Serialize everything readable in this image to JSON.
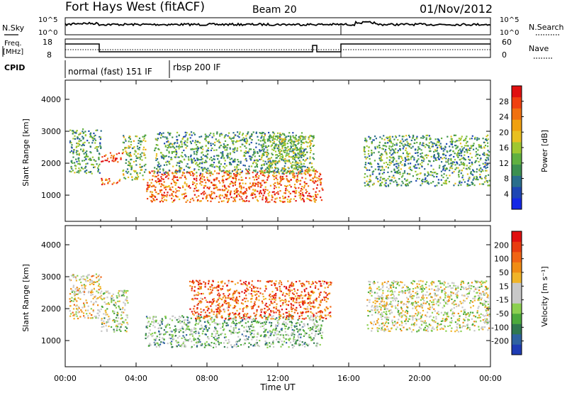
{
  "header": {
    "site": "Fort Hays West (fitACF)",
    "beam": "Beam 20",
    "date": "01/Nov/2012"
  },
  "top_panels": {
    "nsky_label": "N.Sky",
    "nsearch_label": "N.Search",
    "noise_ticks": [
      "10^5",
      "10^0"
    ],
    "freq_label_1": "Freq.",
    "freq_label_2": "[MHz]",
    "freq_ticks": [
      "18",
      "8"
    ],
    "nave_label": "Nave",
    "nave_ticks": [
      "60",
      "0"
    ],
    "cpid_label": "CPID",
    "cpid_modes": [
      {
        "label": "normal (fast) 151 IF",
        "start_hour": 0,
        "end_hour": 6
      },
      {
        "label": "rbsp 200 IF",
        "start_hour": 6,
        "end_hour": 24
      }
    ]
  },
  "xaxis": {
    "label": "Time UT",
    "ticks": [
      "00:00",
      "04:00",
      "08:00",
      "12:00",
      "16:00",
      "20:00",
      "00:00"
    ]
  },
  "chart_data": [
    {
      "type": "heatmap",
      "title": "",
      "xlabel": "Time UT",
      "ylabel": "Slant Range [km]",
      "xlim_hours": [
        0,
        24
      ],
      "ylim_km": [
        180,
        4600
      ],
      "yticks": [
        "1000",
        "2000",
        "3000",
        "4000"
      ],
      "colorbar": {
        "label": "Power [dB]",
        "ticks": [
          "4",
          "8",
          "12",
          "16",
          "20",
          "24",
          "28"
        ],
        "colors": [
          "#1428e6",
          "#1e46b4",
          "#2a6e8c",
          "#3c9050",
          "#60b040",
          "#a0c830",
          "#e8c020",
          "#f0a010",
          "#f07010",
          "#f04010",
          "#e01010"
        ]
      },
      "scatter_regions": [
        {
          "t0": 0.2,
          "t1": 2.0,
          "r0": 1700,
          "r1": 3100,
          "level": 0.35
        },
        {
          "t0": 2.0,
          "t1": 3.2,
          "r0": 2050,
          "r1": 2350,
          "level": 0.92
        },
        {
          "t0": 2.0,
          "t1": 3.2,
          "r0": 1350,
          "r1": 1550,
          "level": 0.75
        },
        {
          "t0": 3.2,
          "t1": 4.5,
          "r0": 1500,
          "r1": 2900,
          "level": 0.45
        },
        {
          "t0": 4.5,
          "t1": 14.5,
          "r0": 800,
          "r1": 1800,
          "level": 0.82
        },
        {
          "t0": 5.0,
          "t1": 13.5,
          "r0": 1700,
          "r1": 3000,
          "level": 0.35
        },
        {
          "t0": 11.0,
          "t1": 14.0,
          "r0": 1700,
          "r1": 2900,
          "level": 0.45
        },
        {
          "t0": 16.8,
          "t1": 23.9,
          "r0": 1300,
          "r1": 2900,
          "level": 0.35
        }
      ]
    },
    {
      "type": "heatmap",
      "title": "",
      "xlabel": "Time UT",
      "ylabel": "Slant Range [km]",
      "xlim_hours": [
        0,
        24
      ],
      "ylim_km": [
        180,
        4600
      ],
      "yticks": [
        "1000",
        "2000",
        "3000",
        "4000"
      ],
      "colorbar": {
        "label": "Velocity [m s⁻¹]",
        "ticks": [
          "200",
          "100",
          "50",
          "15",
          "-15",
          "-50",
          "-100",
          "-200"
        ],
        "colors": [
          "#1e3cb4",
          "#2f62a0",
          "#307850",
          "#4caa3c",
          "#8cd050",
          "#c8c8c8",
          "#c8c8c8",
          "#f0b428",
          "#f08c14",
          "#f06414",
          "#e83c10",
          "#e01010"
        ]
      },
      "scatter_regions": [
        {
          "t0": 0.2,
          "t1": 2.0,
          "r0": 1700,
          "r1": 3100,
          "level": 0.55
        },
        {
          "t0": 2.0,
          "t1": 3.5,
          "r0": 1300,
          "r1": 2600,
          "level": 0.45
        },
        {
          "t0": 4.5,
          "t1": 14.5,
          "r0": 800,
          "r1": 1800,
          "level": 0.35
        },
        {
          "t0": 7.0,
          "t1": 15.0,
          "r0": 1700,
          "r1": 2900,
          "level": 0.8
        },
        {
          "t0": 17.0,
          "t1": 23.9,
          "r0": 1300,
          "r1": 2900,
          "level": 0.5
        }
      ]
    }
  ]
}
